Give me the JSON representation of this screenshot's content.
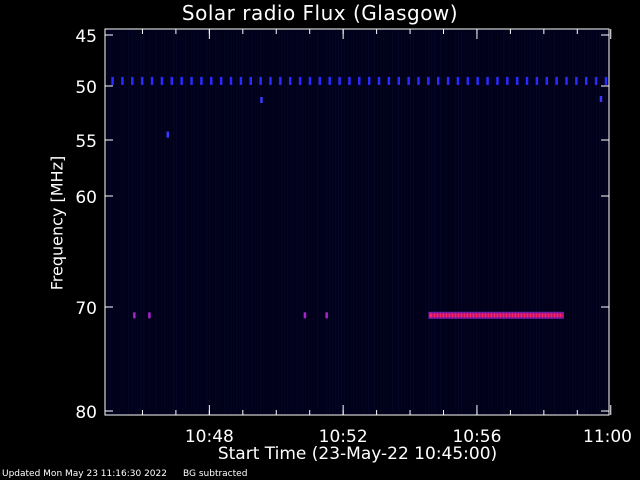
{
  "chart_data": {
    "type": "heatmap",
    "title": "Solar radio Flux (Glasgow)",
    "xlabel": "Start Time (23-May-22 10:45:00)",
    "ylabel": "Frequency [MHz]",
    "x_unit": "minutes after 10:45:00",
    "xlim": [
      0,
      15
    ],
    "ylim": [
      45,
      80
    ],
    "y_inverted": true,
    "x_ticks": [
      {
        "value": 3,
        "label": "10:48"
      },
      {
        "value": 7,
        "label": "10:52"
      },
      {
        "value": 11,
        "label": "10:56"
      },
      {
        "value": 15,
        "label": "11:00"
      }
    ],
    "y_ticks": [
      {
        "value": 45,
        "label": "45"
      },
      {
        "value": 50,
        "label": "50"
      },
      {
        "value": 55,
        "label": "55"
      },
      {
        "value": 60,
        "label": "60"
      },
      {
        "value": 70,
        "label": "70"
      },
      {
        "value": 80,
        "label": "80"
      }
    ],
    "features": [
      {
        "kind": "dotted_line",
        "freq": 49.5,
        "t_start": 0.1,
        "t_end": 15.0,
        "color": "#2a2aff"
      },
      {
        "kind": "burst",
        "freq": 70.8,
        "t_start": 9.55,
        "t_end": 13.6,
        "color": "#ff2060"
      },
      {
        "kind": "spot",
        "freq": 70.8,
        "t": 0.75,
        "color": "#aa22cc"
      },
      {
        "kind": "spot",
        "freq": 70.8,
        "t": 1.2,
        "color": "#aa22cc"
      },
      {
        "kind": "spot",
        "freq": 70.8,
        "t": 5.85,
        "color": "#aa22cc"
      },
      {
        "kind": "spot",
        "freq": 70.8,
        "t": 6.5,
        "color": "#aa22cc"
      },
      {
        "kind": "spot",
        "freq": 54.5,
        "t": 1.75,
        "color": "#3a3aff"
      },
      {
        "kind": "spot",
        "freq": 51.3,
        "t": 4.55,
        "color": "#3a3aff"
      },
      {
        "kind": "spot",
        "freq": 51.2,
        "t": 14.7,
        "color": "#3a3aff"
      }
    ],
    "colors": {
      "background": "#000000",
      "plot_background": "#000018",
      "axis": "#ffffff",
      "noise_stripe": "#06062a"
    }
  },
  "footer": {
    "updated": "Updated Mon May 23 11:16:30 2022",
    "note": "BG subtracted"
  }
}
